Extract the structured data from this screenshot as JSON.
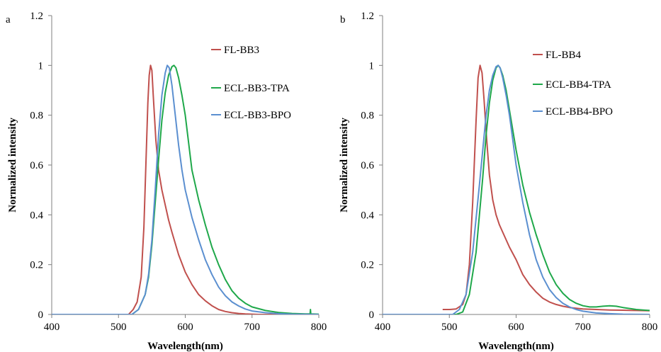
{
  "colors": {
    "fl": "#c0504d",
    "tpa": "#1fa84a",
    "bpo": "#5b8fd0",
    "axis": "#7f7f7f"
  },
  "chart_data": [
    {
      "type": "line",
      "panel_label": "a",
      "xlabel": "Wavelength(nm)",
      "ylabel": "Normalized intensity",
      "xlim": [
        400,
        800
      ],
      "ylim": [
        0,
        1.2
      ],
      "xticks": [
        "400",
        "500",
        "600",
        "700",
        "800"
      ],
      "yticks": [
        "0",
        "0.2",
        "0.4",
        "0.6",
        "0.8",
        "1",
        "1.2"
      ],
      "grid": false,
      "legend_position": "top-right",
      "series": [
        {
          "name": "FL-BB3",
          "color": "#c0504d",
          "x": [
            400,
            500,
            515,
            522,
            528,
            534,
            538,
            541,
            544,
            546,
            548,
            550,
            552,
            556,
            560,
            565,
            570,
            575,
            580,
            590,
            600,
            610,
            620,
            630,
            640,
            650,
            660,
            670,
            680,
            690,
            700,
            710,
            800
          ],
          "y": [
            0,
            0,
            0.0,
            0.02,
            0.05,
            0.15,
            0.35,
            0.6,
            0.85,
            0.96,
            1.0,
            0.98,
            0.88,
            0.7,
            0.58,
            0.5,
            0.44,
            0.38,
            0.33,
            0.24,
            0.17,
            0.12,
            0.08,
            0.055,
            0.035,
            0.02,
            0.012,
            0.007,
            0.004,
            0.002,
            0.001,
            0.0,
            0.0
          ]
        },
        {
          "name": "ECL-BB3-TPA",
          "color": "#1fa84a",
          "x": [
            400,
            520,
            530,
            540,
            545,
            550,
            555,
            560,
            565,
            570,
            575,
            580,
            583,
            586,
            590,
            595,
            600,
            605,
            610,
            620,
            630,
            640,
            650,
            660,
            670,
            680,
            690,
            700,
            720,
            740,
            760,
            780,
            787,
            787.5,
            788,
            800
          ],
          "y": [
            0,
            0.0,
            0.02,
            0.08,
            0.15,
            0.28,
            0.45,
            0.62,
            0.78,
            0.89,
            0.96,
            0.995,
            1.0,
            0.99,
            0.95,
            0.88,
            0.8,
            0.69,
            0.58,
            0.46,
            0.36,
            0.27,
            0.2,
            0.14,
            0.095,
            0.065,
            0.045,
            0.03,
            0.016,
            0.008,
            0.004,
            0.002,
            0.002,
            0.02,
            0.002,
            0.001
          ]
        },
        {
          "name": "ECL-BB3-BPO",
          "color": "#5b8fd0",
          "x": [
            400,
            520,
            530,
            540,
            545,
            550,
            555,
            560,
            565,
            570,
            573,
            576,
            580,
            585,
            590,
            595,
            600,
            610,
            620,
            630,
            640,
            650,
            660,
            670,
            680,
            690,
            700,
            720,
            740,
            760,
            800
          ],
          "y": [
            0,
            0.0,
            0.02,
            0.08,
            0.16,
            0.3,
            0.5,
            0.72,
            0.88,
            0.97,
            1.0,
            0.99,
            0.92,
            0.8,
            0.68,
            0.58,
            0.5,
            0.39,
            0.3,
            0.22,
            0.16,
            0.11,
            0.075,
            0.05,
            0.034,
            0.022,
            0.014,
            0.007,
            0.003,
            0.001,
            0.0
          ]
        }
      ]
    },
    {
      "type": "line",
      "panel_label": "b",
      "xlabel": "Wavelength(nm)",
      "ylabel": "Normalized intensity",
      "xlim": [
        400,
        800
      ],
      "ylim": [
        0,
        1.2
      ],
      "xticks": [
        "400",
        "500",
        "600",
        "700",
        "800"
      ],
      "yticks": [
        "0",
        "0.2",
        "0.4",
        "0.6",
        "0.8",
        "1",
        "1.2"
      ],
      "grid": false,
      "legend_position": "top-right",
      "series": [
        {
          "name": "FL-BB4",
          "color": "#c0504d",
          "x": [
            490,
            500,
            510,
            520,
            525,
            530,
            535,
            540,
            543,
            546,
            549,
            552,
            556,
            560,
            565,
            570,
            575,
            580,
            590,
            600,
            610,
            620,
            630,
            640,
            650,
            660,
            670,
            680,
            690,
            700,
            720,
            740,
            760,
            780,
            800
          ],
          "y": [
            0.02,
            0.02,
            0.022,
            0.04,
            0.08,
            0.2,
            0.45,
            0.78,
            0.95,
            1.0,
            0.97,
            0.86,
            0.7,
            0.56,
            0.46,
            0.4,
            0.36,
            0.33,
            0.27,
            0.22,
            0.16,
            0.12,
            0.09,
            0.065,
            0.05,
            0.04,
            0.033,
            0.028,
            0.025,
            0.022,
            0.02,
            0.018,
            0.017,
            0.016,
            0.015
          ]
        },
        {
          "name": "ECL-BB4-TPA",
          "color": "#1fa84a",
          "x": [
            400,
            510,
            520,
            530,
            540,
            550,
            555,
            560,
            565,
            570,
            573,
            576,
            580,
            585,
            590,
            595,
            600,
            610,
            620,
            630,
            640,
            650,
            660,
            670,
            680,
            690,
            700,
            710,
            720,
            730,
            740,
            750,
            760,
            770,
            780,
            790,
            800
          ],
          "y": [
            0,
            0.0,
            0.01,
            0.08,
            0.25,
            0.55,
            0.72,
            0.85,
            0.94,
            0.99,
            1.0,
            0.99,
            0.96,
            0.9,
            0.82,
            0.74,
            0.66,
            0.52,
            0.41,
            0.32,
            0.24,
            0.17,
            0.12,
            0.085,
            0.06,
            0.045,
            0.035,
            0.03,
            0.03,
            0.033,
            0.035,
            0.033,
            0.028,
            0.024,
            0.02,
            0.018,
            0.016
          ]
        },
        {
          "name": "ECL-BB4-BPO",
          "color": "#5b8fd0",
          "x": [
            400,
            505,
            515,
            525,
            535,
            545,
            555,
            560,
            565,
            570,
            573,
            576,
            580,
            585,
            590,
            595,
            600,
            610,
            620,
            630,
            640,
            650,
            660,
            670,
            680,
            690,
            700,
            720,
            740,
            760,
            800
          ],
          "y": [
            0,
            0.0,
            0.02,
            0.08,
            0.25,
            0.52,
            0.8,
            0.9,
            0.96,
            0.995,
            1.0,
            0.99,
            0.95,
            0.88,
            0.8,
            0.7,
            0.6,
            0.45,
            0.32,
            0.22,
            0.15,
            0.1,
            0.068,
            0.045,
            0.03,
            0.02,
            0.013,
            0.006,
            0.003,
            0.001,
            0.0
          ]
        }
      ]
    }
  ]
}
